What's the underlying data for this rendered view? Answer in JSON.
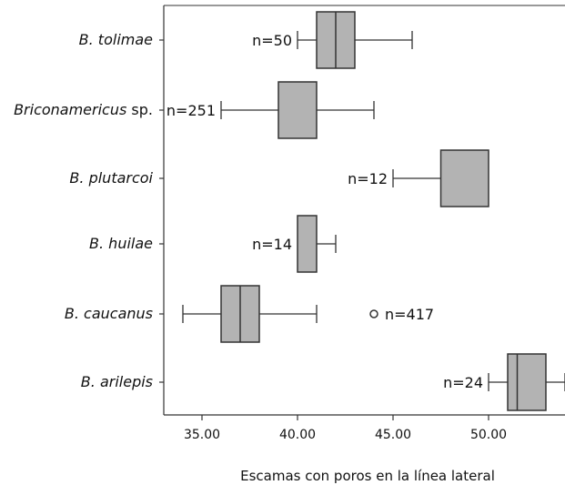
{
  "chart_data": {
    "type": "boxplot",
    "orientation": "horizontal",
    "xlabel": "Escamas con poros en la línea lateral",
    "xlim": [
      33.0,
      54.0
    ],
    "xticks": [
      {
        "value": 35,
        "label": "35.00"
      },
      {
        "value": 40,
        "label": "40.00"
      },
      {
        "value": 45,
        "label": "45.00"
      },
      {
        "value": 50,
        "label": "50.00"
      }
    ],
    "grid": false,
    "colors": {
      "box_fill": "#b3b3b3",
      "stroke": "#333333"
    },
    "categories": [
      {
        "label": "B. tolimae",
        "label_suffix": "",
        "n_label": "n=50",
        "whisker_low": 40,
        "q1": 41,
        "median": 42,
        "q3": 43,
        "whisker_high": 46,
        "outliers": []
      },
      {
        "label": "Briconamericus",
        "label_suffix": " sp.",
        "n_label": "n=251",
        "whisker_low": 36,
        "q1": 39,
        "median": 41,
        "q3": 41,
        "whisker_high": 44,
        "outliers": []
      },
      {
        "label": "B. plutarcoi",
        "label_suffix": "",
        "n_label": "n=12",
        "whisker_low": 45,
        "q1": 47.5,
        "median": 50,
        "q3": 50,
        "whisker_high": 50,
        "outliers": []
      },
      {
        "label": "B. huilae",
        "label_suffix": "",
        "n_label": "n=14",
        "whisker_low": 40,
        "q1": 40,
        "median": 41,
        "q3": 41,
        "whisker_high": 42,
        "outliers": []
      },
      {
        "label": "B. caucanus",
        "label_suffix": "",
        "n_label": "n=417",
        "whisker_low": 34,
        "q1": 36,
        "median": 37,
        "q3": 38,
        "whisker_high": 41,
        "outliers": [
          44
        ]
      },
      {
        "label": "B. arilepis",
        "label_suffix": "",
        "n_label": "n=24",
        "whisker_low": 50,
        "q1": 51,
        "median": 51.5,
        "q3": 53,
        "whisker_high": 54,
        "outliers": []
      }
    ]
  }
}
